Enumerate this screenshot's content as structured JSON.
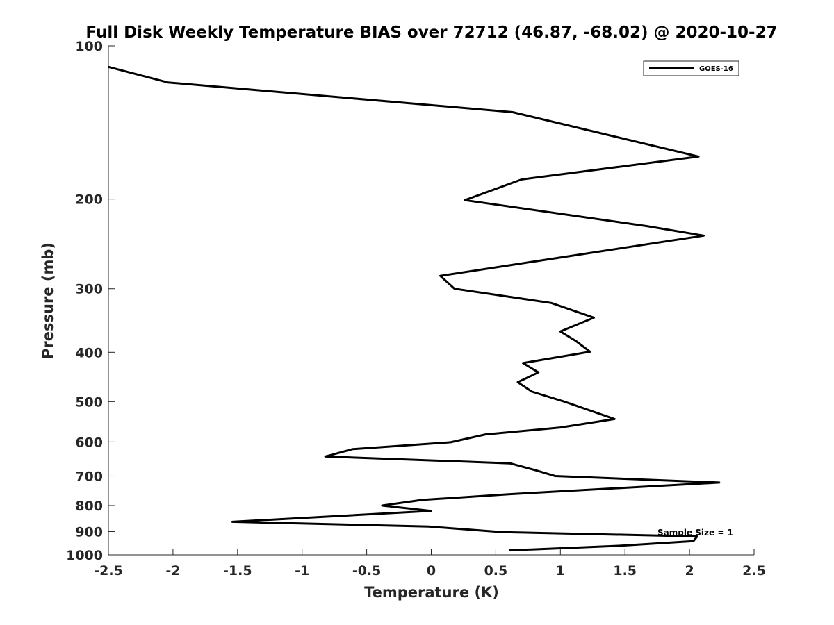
{
  "chart_data": {
    "type": "line",
    "title": "Full Disk Weekly Temperature BIAS over 72712 (46.87, -68.02) @ 2020-10-27",
    "xlabel": "Temperature (K)",
    "ylabel": "Pressure (mb)",
    "xlim": [
      -2.5,
      2.5
    ],
    "ylim": [
      100,
      1000
    ],
    "y_scale": "log",
    "y_reversed": true,
    "grid": false,
    "x_ticks": [
      -2.5,
      -2,
      -1.5,
      -1,
      -0.5,
      0,
      0.5,
      1,
      1.5,
      2,
      2.5
    ],
    "x_tick_labels": [
      "-2.5",
      "-2",
      "-1.5",
      "-1",
      "-0.5",
      "0",
      "0.5",
      "1",
      "1.5",
      "2",
      "2.5"
    ],
    "y_ticks": [
      100,
      200,
      300,
      400,
      500,
      600,
      700,
      800,
      900,
      1000
    ],
    "y_tick_labels": [
      "100",
      "200",
      "300",
      "400",
      "500",
      "600",
      "700",
      "800",
      "900",
      "1000"
    ],
    "legend_position": "top-right",
    "annotation": "Sample Size = 1",
    "series": [
      {
        "name": "GOES-16",
        "color": "#000000",
        "points": [
          {
            "x": -2.5,
            "y": 110
          },
          {
            "x": -2.04,
            "y": 118
          },
          {
            "x": 0.63,
            "y": 135
          },
          {
            "x": 2.07,
            "y": 165
          },
          {
            "x": 0.7,
            "y": 183
          },
          {
            "x": 0.26,
            "y": 201
          },
          {
            "x": 1.67,
            "y": 226
          },
          {
            "x": 2.11,
            "y": 236
          },
          {
            "x": 0.07,
            "y": 283
          },
          {
            "x": 0.18,
            "y": 300
          },
          {
            "x": 0.93,
            "y": 320
          },
          {
            "x": 1.26,
            "y": 342
          },
          {
            "x": 1.0,
            "y": 364
          },
          {
            "x": 1.12,
            "y": 380
          },
          {
            "x": 1.23,
            "y": 399
          },
          {
            "x": 0.71,
            "y": 420
          },
          {
            "x": 0.83,
            "y": 438
          },
          {
            "x": 0.67,
            "y": 458
          },
          {
            "x": 0.78,
            "y": 478
          },
          {
            "x": 1.03,
            "y": 500
          },
          {
            "x": 1.42,
            "y": 541
          },
          {
            "x": 1.0,
            "y": 562
          },
          {
            "x": 0.42,
            "y": 580
          },
          {
            "x": 0.15,
            "y": 601
          },
          {
            "x": -0.61,
            "y": 620
          },
          {
            "x": -0.82,
            "y": 641
          },
          {
            "x": 0.61,
            "y": 661
          },
          {
            "x": 0.8,
            "y": 681
          },
          {
            "x": 0.96,
            "y": 700
          },
          {
            "x": 2.23,
            "y": 721
          },
          {
            "x": 0.61,
            "y": 760
          },
          {
            "x": -0.07,
            "y": 780
          },
          {
            "x": -0.38,
            "y": 800
          },
          {
            "x": 0.0,
            "y": 820
          },
          {
            "x": -1.54,
            "y": 861
          },
          {
            "x": -0.02,
            "y": 880
          },
          {
            "x": 0.55,
            "y": 902
          },
          {
            "x": 2.06,
            "y": 920
          },
          {
            "x": 2.03,
            "y": 940
          },
          {
            "x": 1.45,
            "y": 960
          },
          {
            "x": 0.6,
            "y": 980
          }
        ]
      }
    ]
  }
}
